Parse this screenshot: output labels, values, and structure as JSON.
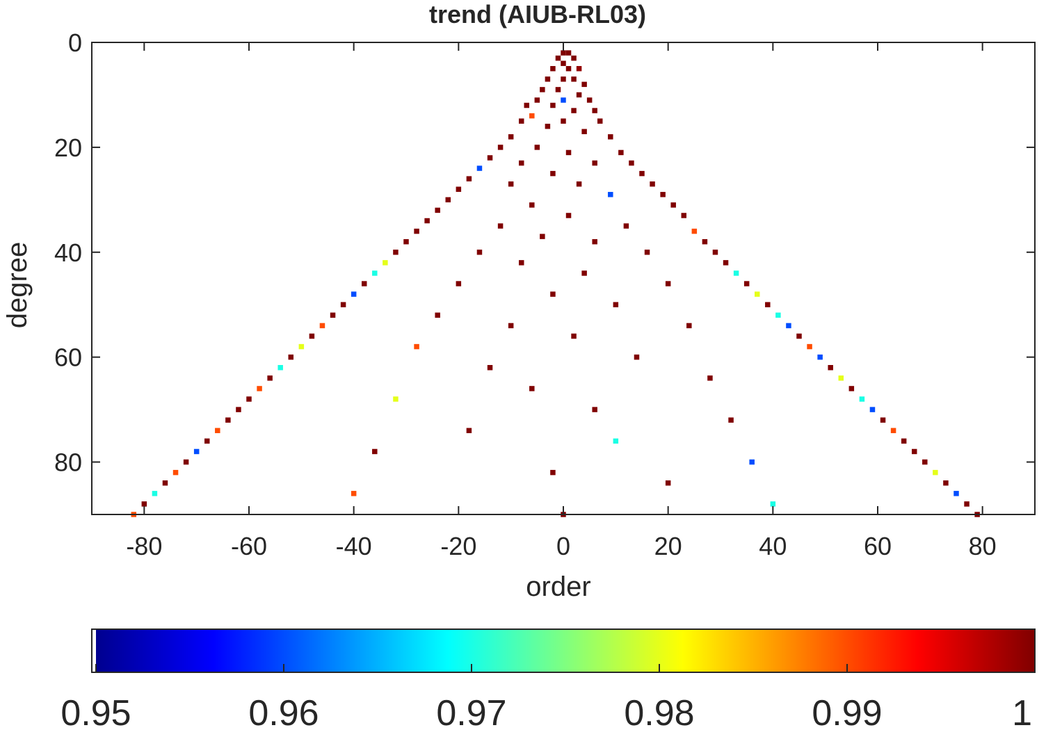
{
  "chart_data": {
    "type": "heatmap",
    "title": "trend (AIUB-RL03)",
    "xlabel": "order",
    "ylabel": "degree",
    "xlim": [
      -90,
      90
    ],
    "ylim": [
      0,
      90
    ],
    "y_reversed": true,
    "xticks": [
      -80,
      -60,
      -40,
      -20,
      0,
      20,
      40,
      60,
      80
    ],
    "yticks": [
      0,
      20,
      40,
      60,
      80
    ],
    "colormap": "jet",
    "clim": [
      0.95,
      1
    ],
    "colorbar_ticks": [
      "0.95",
      "0.96",
      "0.97",
      "0.98",
      "0.99",
      "1"
    ],
    "grid": false,
    "legend": "none",
    "description_pattern": "triangular coefficient grid (|order| <= degree); values near 1 (dark red) concentrated in the central low-|order| region, sparse scattered values toward high |order|",
    "cells": [
      [
        0,
        2,
        1
      ],
      [
        1,
        2,
        1
      ],
      [
        -1,
        3,
        1
      ],
      [
        2,
        3,
        1
      ],
      [
        0,
        4,
        1
      ],
      [
        -2,
        5,
        1
      ],
      [
        1,
        5,
        1
      ],
      [
        3,
        5,
        0.999
      ],
      [
        -3,
        7,
        1
      ],
      [
        0,
        7,
        1
      ],
      [
        2,
        7,
        1
      ],
      [
        4,
        8,
        1
      ],
      [
        -4,
        9,
        1
      ],
      [
        -1,
        9,
        1
      ],
      [
        3,
        10,
        1
      ],
      [
        -5,
        11,
        1
      ],
      [
        0,
        11,
        0.96
      ],
      [
        5,
        11,
        1
      ],
      [
        -7,
        12,
        1
      ],
      [
        -2,
        12,
        1
      ],
      [
        2,
        13,
        1
      ],
      [
        6,
        13,
        1
      ],
      [
        -6,
        14,
        0.99
      ],
      [
        -8,
        15,
        1
      ],
      [
        0,
        15,
        1
      ],
      [
        7,
        15,
        1
      ],
      [
        -3,
        16,
        1
      ],
      [
        4,
        17,
        1
      ],
      [
        -10,
        18,
        1
      ],
      [
        9,
        18,
        1
      ],
      [
        -12,
        20,
        1
      ],
      [
        -5,
        20,
        1
      ],
      [
        1,
        21,
        1
      ],
      [
        11,
        21,
        1
      ],
      [
        -14,
        22,
        1
      ],
      [
        -8,
        23,
        1
      ],
      [
        6,
        23,
        1
      ],
      [
        13,
        23,
        1
      ],
      [
        -16,
        24,
        0.96
      ],
      [
        -2,
        25,
        1
      ],
      [
        15,
        25,
        1
      ],
      [
        -18,
        26,
        1
      ],
      [
        -10,
        27,
        1
      ],
      [
        3,
        27,
        1
      ],
      [
        17,
        27,
        1
      ],
      [
        -20,
        28,
        1
      ],
      [
        9,
        29,
        0.96
      ],
      [
        19,
        29,
        1
      ],
      [
        -22,
        30,
        1
      ],
      [
        -6,
        31,
        1
      ],
      [
        21,
        31,
        1
      ],
      [
        -24,
        32,
        1
      ],
      [
        1,
        33,
        1
      ],
      [
        23,
        33,
        1
      ],
      [
        -26,
        34,
        1
      ],
      [
        -12,
        35,
        1
      ],
      [
        12,
        35,
        1
      ],
      [
        -28,
        36,
        1
      ],
      [
        25,
        36,
        0.99
      ],
      [
        -4,
        37,
        1
      ],
      [
        -30,
        38,
        1
      ],
      [
        6,
        38,
        1
      ],
      [
        27,
        38,
        1
      ],
      [
        -32,
        40,
        1
      ],
      [
        -16,
        40,
        1
      ],
      [
        16,
        40,
        1
      ],
      [
        29,
        40,
        1
      ],
      [
        -34,
        42,
        0.98
      ],
      [
        -8,
        42,
        1
      ],
      [
        31,
        42,
        1
      ],
      [
        -36,
        44,
        0.97
      ],
      [
        4,
        44,
        1
      ],
      [
        33,
        44,
        0.97
      ],
      [
        -38,
        46,
        1
      ],
      [
        -20,
        46,
        1
      ],
      [
        20,
        46,
        1
      ],
      [
        35,
        46,
        1
      ],
      [
        -40,
        48,
        0.96
      ],
      [
        -2,
        48,
        1
      ],
      [
        37,
        48,
        0.98
      ],
      [
        -42,
        50,
        1
      ],
      [
        10,
        50,
        1
      ],
      [
        39,
        50,
        1
      ],
      [
        -44,
        52,
        1
      ],
      [
        -24,
        52,
        1
      ],
      [
        41,
        52,
        0.97
      ],
      [
        -46,
        54,
        0.99
      ],
      [
        -10,
        54,
        1
      ],
      [
        24,
        54,
        1
      ],
      [
        43,
        54,
        0.96
      ],
      [
        -48,
        56,
        1
      ],
      [
        2,
        56,
        1
      ],
      [
        45,
        56,
        1
      ],
      [
        -50,
        58,
        0.98
      ],
      [
        -28,
        58,
        0.99
      ],
      [
        47,
        58,
        0.99
      ],
      [
        -52,
        60,
        1
      ],
      [
        14,
        60,
        1
      ],
      [
        49,
        60,
        0.96
      ],
      [
        -54,
        62,
        0.97
      ],
      [
        -14,
        62,
        1
      ],
      [
        51,
        62,
        1
      ],
      [
        -56,
        64,
        1
      ],
      [
        28,
        64,
        1
      ],
      [
        53,
        64,
        0.98
      ],
      [
        -58,
        66,
        0.99
      ],
      [
        -6,
        66,
        1
      ],
      [
        55,
        66,
        1
      ],
      [
        -60,
        68,
        1
      ],
      [
        -32,
        68,
        0.98
      ],
      [
        57,
        68,
        0.97
      ],
      [
        -62,
        70,
        1
      ],
      [
        6,
        70,
        1
      ],
      [
        59,
        70,
        0.96
      ],
      [
        -64,
        72,
        1
      ],
      [
        32,
        72,
        1
      ],
      [
        61,
        72,
        1
      ],
      [
        -66,
        74,
        0.99
      ],
      [
        -18,
        74,
        1
      ],
      [
        63,
        74,
        0.99
      ],
      [
        -68,
        76,
        1
      ],
      [
        10,
        76,
        0.97
      ],
      [
        65,
        76,
        1
      ],
      [
        -70,
        78,
        0.96
      ],
      [
        -36,
        78,
        1
      ],
      [
        67,
        78,
        1
      ],
      [
        -72,
        80,
        1
      ],
      [
        36,
        80,
        0.96
      ],
      [
        69,
        80,
        1
      ],
      [
        -74,
        82,
        0.99
      ],
      [
        -2,
        82,
        1
      ],
      [
        71,
        82,
        0.98
      ],
      [
        -76,
        84,
        1
      ],
      [
        20,
        84,
        1
      ],
      [
        73,
        84,
        1
      ],
      [
        -78,
        86,
        0.97
      ],
      [
        -40,
        86,
        0.99
      ],
      [
        75,
        86,
        0.96
      ],
      [
        -80,
        88,
        1
      ],
      [
        40,
        88,
        0.97
      ],
      [
        77,
        88,
        1
      ],
      [
        -82,
        90,
        0.99
      ],
      [
        0,
        90,
        1
      ],
      [
        79,
        90,
        1
      ]
    ]
  }
}
